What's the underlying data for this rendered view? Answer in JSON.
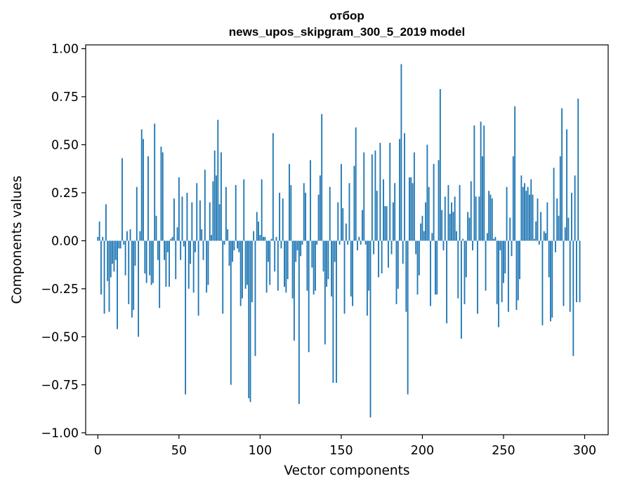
{
  "chart_data": {
    "type": "bar",
    "title_lines": [
      "отбор",
      "news_upos_skipgram_300_5_2019 model"
    ],
    "xlabel": "Vector components",
    "ylabel": "Components values",
    "xlim": [
      -7.5,
      314.5
    ],
    "ylim": [
      -1.01,
      1.02
    ],
    "xticks": [
      0,
      50,
      100,
      150,
      200,
      250,
      300
    ],
    "yticks": [
      -1.0,
      -0.75,
      -0.5,
      -0.25,
      0.0,
      0.25,
      0.5,
      0.75,
      1.0
    ],
    "ytick_labels": [
      "−1.00",
      "−0.75",
      "−0.50",
      "−0.25",
      "0.00",
      "0.25",
      "0.50",
      "0.75",
      "1.00"
    ],
    "bar_color": "#1f77b4",
    "grid": false,
    "x_start": 0,
    "values": [
      0.02,
      0.1,
      -0.28,
      0.02,
      -0.38,
      0.19,
      -0.21,
      -0.37,
      -0.19,
      -0.12,
      -0.16,
      -0.1,
      -0.46,
      -0.04,
      -0.04,
      0.43,
      -0.02,
      -0.18,
      0.05,
      -0.33,
      0.06,
      -0.4,
      -0.36,
      -0.13,
      0.28,
      -0.5,
      0.05,
      0.58,
      0.53,
      -0.17,
      -0.22,
      0.44,
      -0.18,
      -0.23,
      -0.22,
      0.61,
      0.13,
      -0.1,
      -0.35,
      0.49,
      0.46,
      -0.1,
      -0.24,
      -0.06,
      -0.24,
      0.01,
      0.02,
      0.22,
      -0.2,
      0.07,
      0.33,
      -0.1,
      0.23,
      -0.03,
      -0.8,
      0.25,
      -0.25,
      -0.12,
      0.2,
      -0.27,
      -0.06,
      0.3,
      -0.39,
      0.21,
      0.06,
      -0.1,
      0.37,
      -0.27,
      -0.23,
      0.2,
      0.03,
      0.31,
      0.47,
      0.34,
      0.63,
      0.19,
      0.46,
      -0.38,
      -0.02,
      0.28,
      0.06,
      -0.13,
      -0.75,
      -0.11,
      -0.05,
      0.29,
      -0.04,
      -0.06,
      -0.34,
      -0.3,
      0.32,
      -0.25,
      -0.23,
      -0.82,
      -0.84,
      -0.32,
      0.05,
      -0.6,
      0.15,
      0.1,
      0.03,
      0.32,
      0.02,
      0.02,
      -0.27,
      -0.11,
      -0.23,
      0.01,
      0.56,
      -0.16,
      0.02,
      -0.26,
      0.25,
      -0.04,
      0.22,
      -0.24,
      -0.27,
      -0.2,
      0.4,
      0.29,
      -0.3,
      -0.52,
      -0.11,
      -0.05,
      -0.85,
      -0.08,
      -0.02,
      0.3,
      0.25,
      -0.26,
      -0.58,
      0.42,
      -0.14,
      -0.28,
      -0.26,
      -0.02,
      0.24,
      0.34,
      0.66,
      -0.16,
      -0.54,
      -0.24,
      -0.2,
      0.28,
      -0.29,
      -0.74,
      -0.11,
      -0.74,
      0.2,
      -0.02,
      0.4,
      0.17,
      -0.38,
      0.09,
      -0.02,
      0.3,
      -0.29,
      -0.34,
      0.39,
      0.59,
      -0.05,
      0.02,
      -0.02,
      0.16,
      0.46,
      -0.02,
      -0.39,
      -0.26,
      -0.92,
      0.45,
      -0.07,
      0.47,
      0.26,
      -0.19,
      0.51,
      -0.17,
      0.32,
      0.18,
      0.18,
      -0.14,
      0.51,
      -0.07,
      0.2,
      0.3,
      -0.33,
      -0.25,
      0.53,
      0.92,
      -0.12,
      0.56,
      -0.37,
      -0.8,
      0.33,
      0.33,
      0.3,
      0.46,
      -0.07,
      -0.28,
      -0.18,
      0.09,
      0.13,
      0.05,
      0.2,
      0.5,
      0.28,
      -0.34,
      0.04,
      0.4,
      -0.28,
      -0.28,
      0.42,
      0.79,
      0.16,
      -0.05,
      0.23,
      -0.43,
      0.29,
      0.14,
      0.2,
      0.15,
      0.23,
      0.05,
      -0.3,
      0.29,
      -0.51,
      0.01,
      -0.33,
      -0.19,
      0.15,
      0.12,
      0.31,
      -0.05,
      0.6,
      0.23,
      -0.38,
      0.23,
      0.62,
      0.44,
      0.6,
      -0.26,
      0.04,
      0.26,
      0.24,
      0.22,
      0.01,
      0.02,
      -0.33,
      -0.45,
      -0.05,
      -0.32,
      -0.22,
      -0.17,
      0.28,
      -0.37,
      0.12,
      -0.08,
      0.44,
      0.7,
      -0.36,
      -0.31,
      -0.2,
      0.34,
      0.28,
      0.3,
      0.26,
      0.28,
      0.24,
      0.32,
      0.24,
      0.01,
      0.1,
      0.22,
      -0.02,
      0.15,
      -0.44,
      0.05,
      0.04,
      0.2,
      -0.19,
      -0.42,
      -0.4,
      0.38,
      -0.06,
      0.22,
      0.13,
      0.44,
      0.69,
      -0.34,
      0.07,
      0.58,
      0.12,
      -0.37,
      0.25,
      -0.6,
      0.34,
      -0.32,
      0.74,
      -0.32
    ]
  }
}
